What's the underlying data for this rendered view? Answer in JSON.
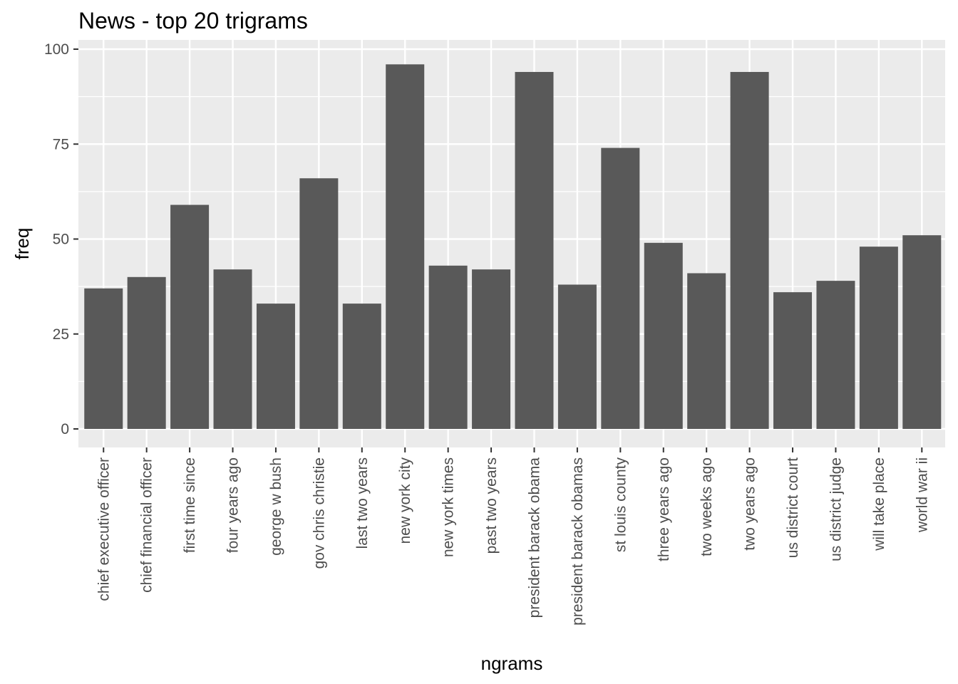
{
  "chart_data": {
    "type": "bar",
    "title": "News - top 20 trigrams",
    "xlabel": "ngrams",
    "ylabel": "freq",
    "categories": [
      "chief executive officer",
      "chief financial officer",
      "first time since",
      "four years ago",
      "george w bush",
      "gov chris christie",
      "last two years",
      "new york city",
      "new york times",
      "past two years",
      "president barack obama",
      "president barack obamas",
      "st louis county",
      "three years ago",
      "two weeks ago",
      "two years ago",
      "us district court",
      "us district judge",
      "will take place",
      "world war ii"
    ],
    "values": [
      37,
      40,
      59,
      42,
      33,
      66,
      33,
      96,
      43,
      42,
      94,
      38,
      74,
      49,
      41,
      94,
      36,
      39,
      48,
      51
    ],
    "ylim": [
      0,
      100
    ],
    "yticks": [
      0,
      25,
      50,
      75,
      100
    ],
    "grid": true,
    "colors": {
      "bar": "#595959",
      "panel": "#ebebeb",
      "grid": "#ffffff",
      "tick": "#333333"
    }
  }
}
